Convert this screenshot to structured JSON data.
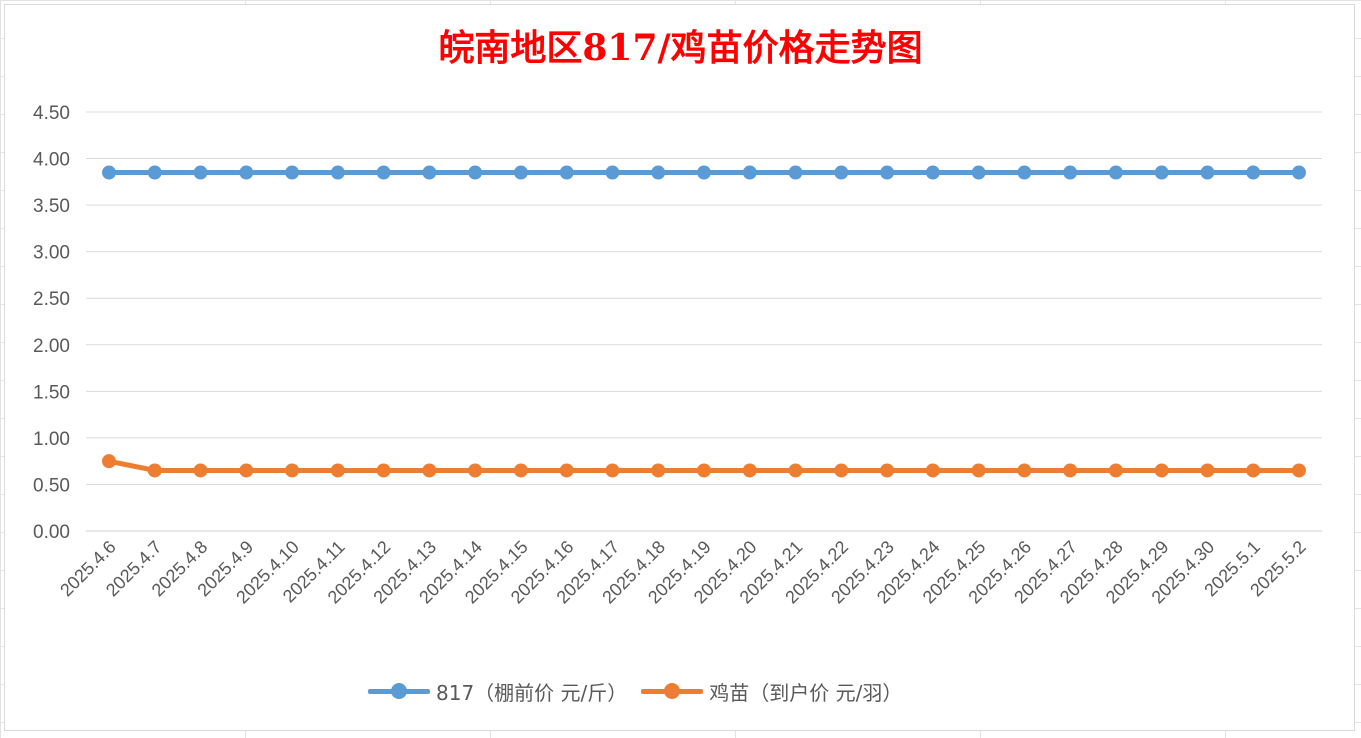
{
  "chart_data": {
    "type": "line",
    "title": "皖南地区817/鸡苗价格走势图",
    "xlabel": "",
    "ylabel": "",
    "ylim": [
      0,
      4.5
    ],
    "ytick_step": 0.5,
    "ytick_labels": [
      "0.00",
      "0.50",
      "1.00",
      "1.50",
      "2.00",
      "2.50",
      "3.00",
      "3.50",
      "4.00",
      "4.50"
    ],
    "grid": true,
    "legend_position": "bottom",
    "categories": [
      "2025.4.6",
      "2025.4.7",
      "2025.4.8",
      "2025.4.9",
      "2025.4.10",
      "2025.4.11",
      "2025.4.12",
      "2025.4.13",
      "2025.4.14",
      "2025.4.15",
      "2025.4.16",
      "2025.4.17",
      "2025.4.18",
      "2025.4.19",
      "2025.4.20",
      "2025.4.21",
      "2025.4.22",
      "2025.4.23",
      "2025.4.24",
      "2025.4.25",
      "2025.4.26",
      "2025.4.27",
      "2025.4.28",
      "2025.4.29",
      "2025.4.30",
      "2025.5.1",
      "2025.5.2"
    ],
    "series": [
      {
        "name": "817（棚前价 元/斤）",
        "color": "#5b9bd5",
        "values": [
          3.85,
          3.85,
          3.85,
          3.85,
          3.85,
          3.85,
          3.85,
          3.85,
          3.85,
          3.85,
          3.85,
          3.85,
          3.85,
          3.85,
          3.85,
          3.85,
          3.85,
          3.85,
          3.85,
          3.85,
          3.85,
          3.85,
          3.85,
          3.85,
          3.85,
          3.85,
          3.85
        ]
      },
      {
        "name": "鸡苗（到户价 元/羽）",
        "color": "#ed7d31",
        "values": [
          0.75,
          0.65,
          0.65,
          0.65,
          0.65,
          0.65,
          0.65,
          0.65,
          0.65,
          0.65,
          0.65,
          0.65,
          0.65,
          0.65,
          0.65,
          0.65,
          0.65,
          0.65,
          0.65,
          0.65,
          0.65,
          0.65,
          0.65,
          0.65,
          0.65,
          0.65,
          0.65
        ]
      }
    ]
  }
}
